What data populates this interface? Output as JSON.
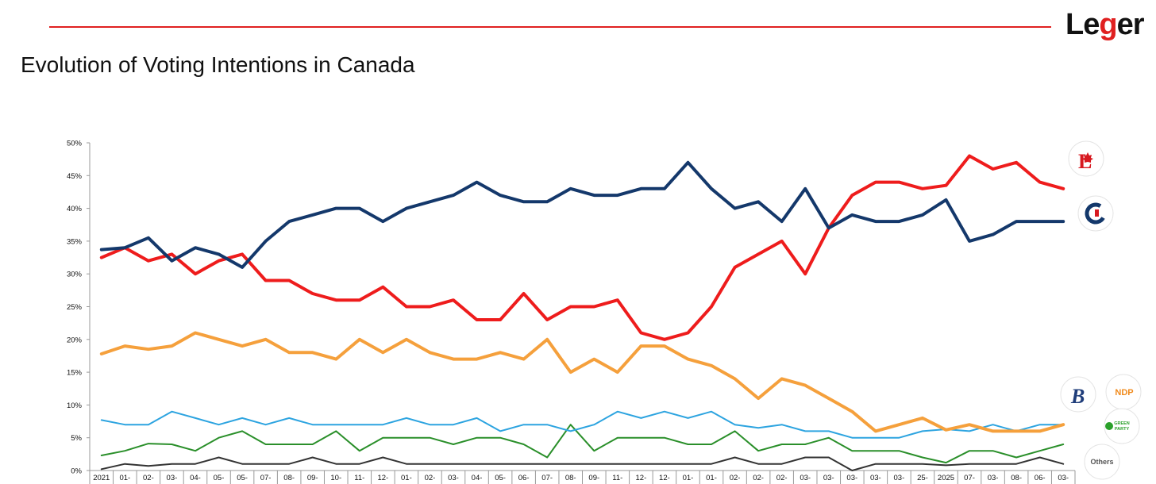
{
  "header": {
    "logo_prefix": "Le",
    "logo_g": "g",
    "logo_suffix": "er",
    "title": "Evolution of Voting Intentions in Canada"
  },
  "colors": {
    "rule": "#e02020",
    "lpc": "#ee1c1c",
    "cpc": "#14386b",
    "ndp": "#f5a03c",
    "bq": "#2da4e0",
    "green": "#2a8f2a",
    "others": "#333333"
  },
  "chart_data": {
    "type": "line",
    "title": "Evolution of Voting Intentions in Canada",
    "xlabel": "",
    "ylabel": "",
    "ylim": [
      0,
      50
    ],
    "y_ticks": [
      "0%",
      "5%",
      "10%",
      "15%",
      "20%",
      "25%",
      "30%",
      "35%",
      "40%",
      "45%",
      "50%"
    ],
    "categories": [
      "2021",
      "01-",
      "02-",
      "03-",
      "04-",
      "05-",
      "05-",
      "07-",
      "08-",
      "09-",
      "10-",
      "11-",
      "12-",
      "01-",
      "02-",
      "03-",
      "04-",
      "05-",
      "06-",
      "07-",
      "08-",
      "09-",
      "11-",
      "12-",
      "12-",
      "01-",
      "01-",
      "02-",
      "02-",
      "02-",
      "03-",
      "03-",
      "03-",
      "03-",
      "03-",
      "25-",
      "2025",
      "07-",
      "03-",
      "08-",
      "06-",
      "03-"
    ],
    "series": [
      {
        "name": "Liberal",
        "key": "lpc",
        "values": [
          32.5,
          34,
          32,
          33,
          30,
          32,
          33,
          29,
          29,
          27,
          26,
          26,
          28,
          25,
          25,
          26,
          23,
          23,
          27,
          23,
          25,
          25,
          26,
          21,
          20,
          21,
          25,
          31,
          33,
          35,
          30,
          37,
          42,
          44,
          44,
          43,
          43.5,
          48,
          46,
          47,
          44,
          43
        ]
      },
      {
        "name": "Conservative",
        "key": "cpc",
        "values": [
          33.7,
          34,
          35.5,
          32,
          34,
          33,
          31,
          35,
          38,
          39,
          40,
          40,
          38,
          40,
          41,
          42,
          44,
          42,
          41,
          41,
          43,
          42,
          42,
          43,
          43,
          47,
          43,
          40,
          41,
          38,
          43,
          37,
          39,
          38,
          38,
          39,
          41.3,
          35,
          36,
          38,
          38,
          38
        ]
      },
      {
        "name": "NDP",
        "key": "ndp",
        "values": [
          17.8,
          19,
          18.5,
          19,
          21,
          20,
          19,
          20,
          18,
          18,
          17,
          20,
          18,
          20,
          18,
          17,
          17,
          18,
          17,
          20,
          15,
          17,
          15,
          19,
          19,
          17,
          16,
          14,
          11,
          14,
          13,
          11,
          9,
          6,
          7,
          8,
          6.2,
          7,
          6,
          6,
          6,
          7
        ]
      },
      {
        "name": "Bloc Québécois",
        "key": "bq",
        "values": [
          7.7,
          7,
          7,
          9,
          8,
          7,
          8,
          7,
          8,
          7,
          7,
          7,
          7,
          8,
          7,
          7,
          8,
          6,
          7,
          7,
          6,
          7,
          9,
          8,
          9,
          8,
          9,
          7,
          6.5,
          7,
          6,
          6,
          5,
          5,
          5,
          6,
          6.3,
          6,
          7,
          6,
          7,
          7
        ]
      },
      {
        "name": "Green Party",
        "key": "green",
        "values": [
          2.3,
          3,
          4.1,
          4,
          3,
          5,
          6,
          4,
          4,
          4,
          6,
          3,
          5,
          5,
          5,
          4,
          5,
          5,
          4,
          2,
          7,
          3,
          5,
          5,
          5,
          4,
          4,
          6,
          3,
          4,
          4,
          5,
          3,
          3,
          3,
          2,
          1.2,
          3,
          3,
          2,
          3,
          4
        ]
      },
      {
        "name": "Others",
        "key": "others",
        "values": [
          0.2,
          1,
          0.7,
          1,
          1,
          2,
          1,
          1,
          1,
          2,
          1,
          1,
          2,
          1,
          1,
          1,
          1,
          1,
          1,
          1,
          1,
          1,
          1,
          1,
          1,
          1,
          1,
          2,
          1,
          1,
          2,
          2,
          0,
          1,
          1,
          1,
          0.8,
          1,
          1,
          1,
          2,
          1
        ]
      }
    ],
    "legend": {
      "ndp_label": "NDP",
      "green_label_1": "GREEN",
      "green_label_2": "PARTY",
      "others_label": "Others",
      "lpc_letter": "L",
      "cpc_letter": "C",
      "bq_letter": "B"
    }
  }
}
